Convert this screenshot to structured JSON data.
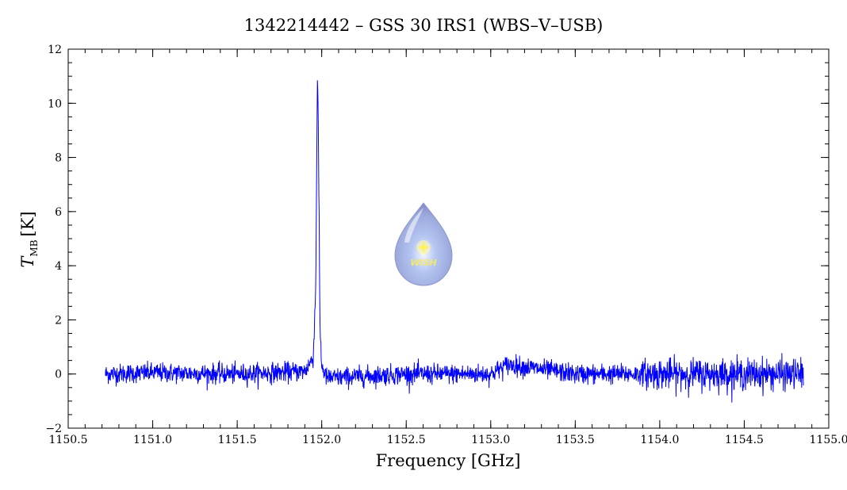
{
  "chart_data": {
    "type": "line",
    "title": "1342214442 – GSS 30 IRS1 (WBS–V–USB)",
    "xlabel": "Frequency [GHz]",
    "ylabel_main": "T",
    "ylabel_sub": "MB",
    "ylabel_unit": "[K]",
    "xlim": [
      1150.5,
      1155.0
    ],
    "ylim": [
      -2,
      12
    ],
    "x_ticks": [
      1150.5,
      1151.0,
      1151.5,
      1152.0,
      1152.5,
      1153.0,
      1153.5,
      1154.0,
      1154.5,
      1155.0
    ],
    "x_tick_labels": [
      "1150.5",
      "1151.0",
      "1151.5",
      "1152.0",
      "1152.5",
      "1153.0",
      "1153.5",
      "1154.0",
      "1154.5",
      "1155.0"
    ],
    "y_ticks": [
      -2,
      0,
      2,
      4,
      6,
      8,
      10,
      12
    ],
    "y_tick_labels": [
      "−2",
      "0",
      "2",
      "4",
      "6",
      "8",
      "10",
      "12"
    ],
    "grid": false,
    "series": [
      {
        "color": "#0000ff",
        "x_start": 1150.72,
        "x_end": 1154.85,
        "baseline": 0.0,
        "noise_rms": 0.18,
        "noise_rms_high_freq": 0.28,
        "peak": {
          "x": 1151.975,
          "y": 11.3
        },
        "points": [
          [
            1150.72,
            0.0
          ],
          [
            1151.0,
            0.05
          ],
          [
            1151.5,
            0.0
          ],
          [
            1151.9,
            0.1
          ],
          [
            1151.95,
            0.6
          ],
          [
            1151.965,
            3.3
          ],
          [
            1151.97,
            7.7
          ],
          [
            1151.975,
            11.3
          ],
          [
            1151.98,
            8.9
          ],
          [
            1151.985,
            5.3
          ],
          [
            1151.99,
            1.7
          ],
          [
            1152.0,
            0.3
          ],
          [
            1152.03,
            -0.15
          ],
          [
            1152.5,
            0.0
          ],
          [
            1153.0,
            0.0
          ],
          [
            1153.1,
            0.35
          ],
          [
            1153.5,
            0.0
          ],
          [
            1154.0,
            0.0
          ],
          [
            1154.5,
            0.0
          ],
          [
            1154.85,
            0.0
          ]
        ]
      }
    ]
  },
  "logo": {
    "text": "WISH"
  }
}
